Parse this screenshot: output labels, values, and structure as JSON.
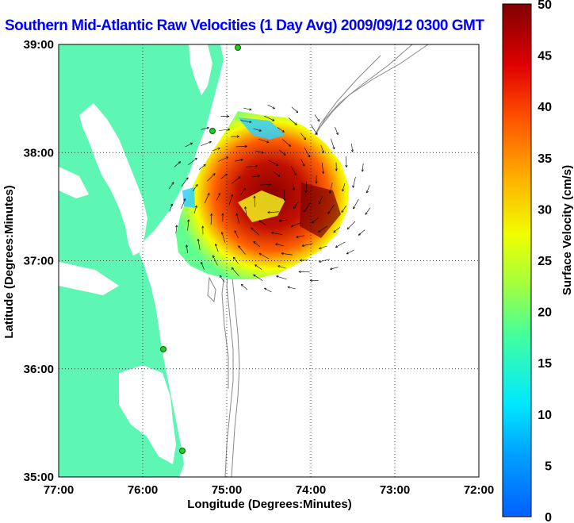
{
  "title": "Southern Mid-Atlantic Raw Velocities (1 Day Avg) 2009/09/12 0300 GMT",
  "map": {
    "xlabel": "Longitude (Degrees:Minutes)",
    "ylabel": "Latitude (Degrees:Minutes)",
    "lon_ticks": [
      "77:00",
      "76:00",
      "75:00",
      "74:00",
      "73:00",
      "72:00"
    ],
    "lat_ticks": [
      "39:00",
      "38:00",
      "37:00",
      "36:00",
      "35:00"
    ],
    "lon_range": [
      -77,
      -72
    ],
    "lat_range": [
      35,
      39
    ],
    "grid": "dotted",
    "colors": {
      "land": "#5df7b3",
      "ocean": "#ffffff",
      "bathymetry": "#888888",
      "station": "#22cc22"
    }
  },
  "colorbar": {
    "label": "Surface Velocity (cm/s)",
    "ticks": [
      "0",
      "5",
      "10",
      "15",
      "20",
      "25",
      "30",
      "35",
      "40",
      "45",
      "50"
    ],
    "range": [
      0,
      50
    ],
    "colormap": "jet"
  }
}
